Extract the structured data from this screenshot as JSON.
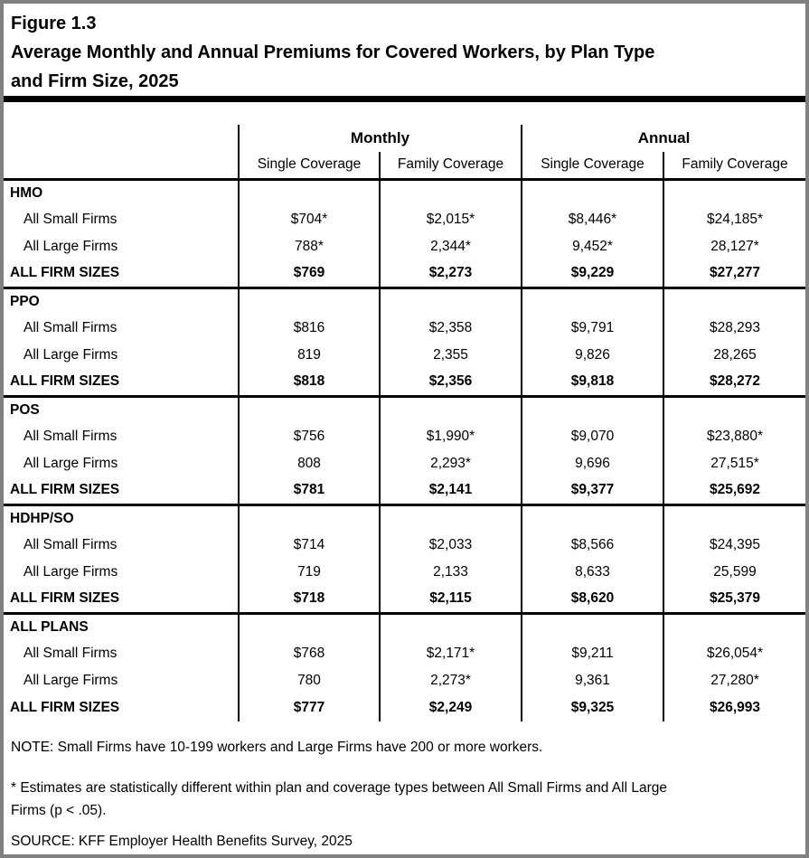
{
  "figure": {
    "label": "Figure 1.3",
    "title": "Average Monthly and Annual Premiums for Covered Workers, by Plan Type\nand Firm Size, 2025"
  },
  "table": {
    "column_groups": [
      "Monthly",
      "Annual"
    ],
    "columns": [
      "Single Coverage",
      "Family Coverage",
      "Single Coverage",
      "Family Coverage"
    ],
    "sections": [
      {
        "plan": "HMO",
        "rows": [
          {
            "label": "All Small Firms",
            "bold": false,
            "values": [
              "$704*",
              "$2,015*",
              "$8,446*",
              "$24,185*"
            ]
          },
          {
            "label": "All Large Firms",
            "bold": false,
            "values": [
              "788*",
              "2,344*",
              "9,452*",
              "28,127*"
            ]
          },
          {
            "label": "ALL FIRM SIZES",
            "bold": true,
            "values": [
              "$769",
              "$2,273",
              "$9,229",
              "$27,277"
            ]
          }
        ]
      },
      {
        "plan": "PPO",
        "rows": [
          {
            "label": "All Small Firms",
            "bold": false,
            "values": [
              "$816",
              "$2,358",
              "$9,791",
              "$28,293"
            ]
          },
          {
            "label": "All Large Firms",
            "bold": false,
            "values": [
              "819",
              "2,355",
              "9,826",
              "28,265"
            ]
          },
          {
            "label": "ALL FIRM SIZES",
            "bold": true,
            "values": [
              "$818",
              "$2,356",
              "$9,818",
              "$28,272"
            ]
          }
        ]
      },
      {
        "plan": "POS",
        "rows": [
          {
            "label": "All Small Firms",
            "bold": false,
            "values": [
              "$756",
              "$1,990*",
              "$9,070",
              "$23,880*"
            ]
          },
          {
            "label": "All Large Firms",
            "bold": false,
            "values": [
              "808",
              "2,293*",
              "9,696",
              "27,515*"
            ]
          },
          {
            "label": "ALL FIRM SIZES",
            "bold": true,
            "values": [
              "$781",
              "$2,141",
              "$9,377",
              "$25,692"
            ]
          }
        ]
      },
      {
        "plan": "HDHP/SO",
        "rows": [
          {
            "label": "All Small Firms",
            "bold": false,
            "values": [
              "$714",
              "$2,033",
              "$8,566",
              "$24,395"
            ]
          },
          {
            "label": "All Large Firms",
            "bold": false,
            "values": [
              "719",
              "2,133",
              "8,633",
              "25,599"
            ]
          },
          {
            "label": "ALL FIRM SIZES",
            "bold": true,
            "values": [
              "$718",
              "$2,115",
              "$8,620",
              "$25,379"
            ]
          }
        ]
      },
      {
        "plan": "ALL PLANS",
        "rows": [
          {
            "label": "All Small Firms",
            "bold": false,
            "values": [
              "$768",
              "$2,171*",
              "$9,211",
              "$26,054*"
            ]
          },
          {
            "label": "All Large Firms",
            "bold": false,
            "values": [
              "780",
              "2,273*",
              "9,361",
              "27,280*"
            ]
          },
          {
            "label": "ALL FIRM SIZES",
            "bold": true,
            "values": [
              "$777",
              "$2,249",
              "$9,325",
              "$26,993"
            ]
          }
        ]
      }
    ]
  },
  "notes": {
    "note": "NOTE: Small Firms have 10-199 workers and Large Firms have 200 or more workers.",
    "asterisk": "* Estimates are statistically different within plan and coverage types between All Small Firms and All Large\nFirms (p < .05).",
    "source": "SOURCE: KFF Employer Health Benefits Survey, 2025"
  },
  "colors": {
    "frame_border": "#808080",
    "rule": "#000000",
    "text": "#000000",
    "background": "#ffffff"
  }
}
